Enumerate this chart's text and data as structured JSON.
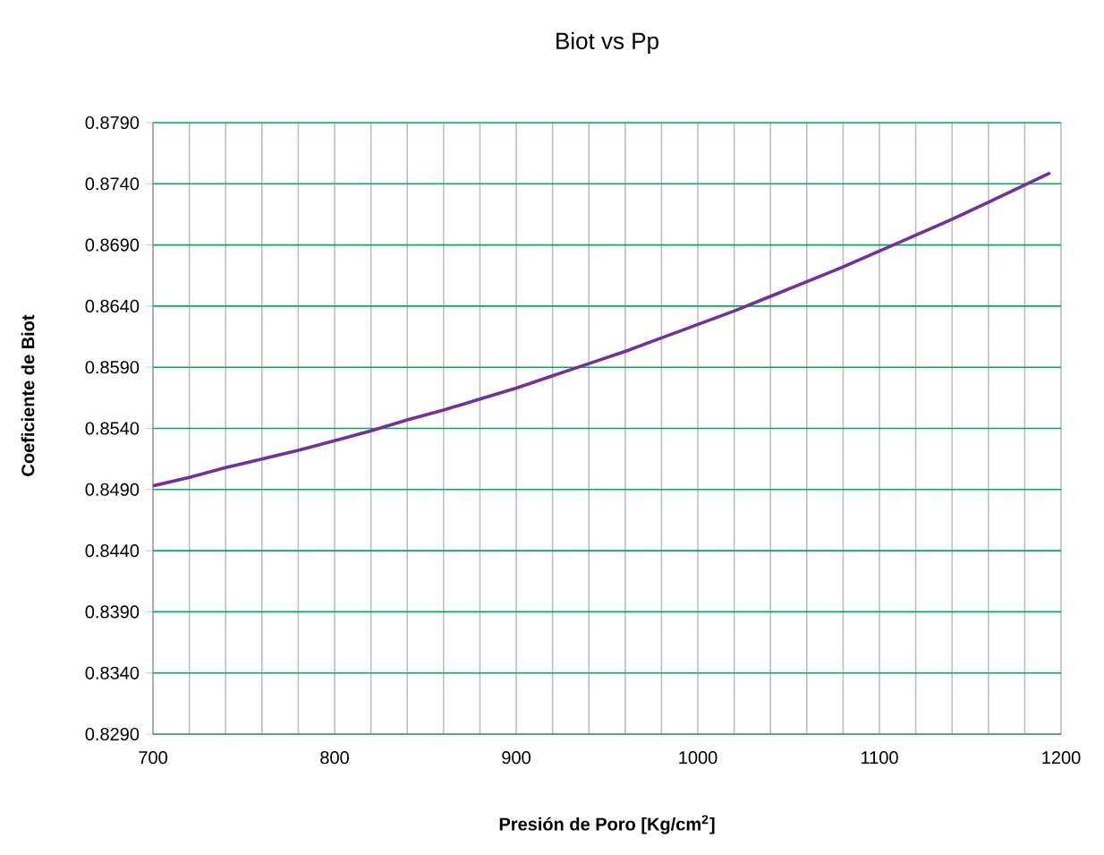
{
  "chart_data": {
    "type": "line",
    "title": "Biot vs Pp",
    "xlabel": "Presión de Poro [Kg/cm$^{2}$]",
    "ylabel": "Coeficiente de Biot",
    "x": [
      700,
      720,
      740,
      760,
      780,
      800,
      820,
      840,
      860,
      880,
      900,
      920,
      940,
      960,
      980,
      1000,
      1020,
      1040,
      1060,
      1080,
      1100,
      1120,
      1140,
      1160,
      1180,
      1194
    ],
    "series": [
      {
        "color": "#7030a0",
        "values": [
          0.8493,
          0.85,
          0.8508,
          0.8515,
          0.8522,
          0.853,
          0.8538,
          0.8547,
          0.8555,
          0.8564,
          0.8573,
          0.8583,
          0.8593,
          0.8603,
          0.8614,
          0.8625,
          0.8636,
          0.8648,
          0.866,
          0.8672,
          0.8685,
          0.8698,
          0.8711,
          0.8725,
          0.8739,
          0.8749
        ]
      }
    ],
    "xlim": [
      700,
      1200
    ],
    "ylim": [
      0.829,
      0.879
    ],
    "xticks": [
      700,
      {
        "value": 720,
        "label": null
      },
      {
        "value": 740,
        "label": null
      },
      {
        "value": 760,
        "label": null
      },
      {
        "value": 780,
        "label": null
      },
      800,
      {
        "value": 820,
        "label": null
      },
      {
        "value": 840,
        "label": null
      },
      {
        "value": 860,
        "label": null
      },
      {
        "value": 880,
        "label": null
      },
      900,
      {
        "value": 920,
        "label": null
      },
      {
        "value": 940,
        "label": null
      },
      {
        "value": 960,
        "label": null
      },
      {
        "value": 980,
        "label": null
      },
      1000,
      {
        "value": 1020,
        "label": null
      },
      {
        "value": 1040,
        "label": null
      },
      {
        "value": 1060,
        "label": null
      },
      {
        "value": 1080,
        "label": null
      },
      1100,
      {
        "value": 1120,
        "label": null
      },
      {
        "value": 1140,
        "label": null
      },
      {
        "value": 1160,
        "label": null
      },
      {
        "value": 1180,
        "label": null
      },
      1200
    ],
    "yticks": [
      {
        "value": 0.829,
        "label": "0.8290"
      },
      {
        "value": 0.834,
        "label": "0.8340"
      },
      {
        "value": 0.839,
        "label": "0.8390"
      },
      {
        "value": 0.844,
        "label": "0.8440"
      },
      {
        "value": 0.849,
        "label": "0.8490"
      },
      {
        "value": 0.854,
        "label": "0.8540"
      },
      {
        "value": 0.859,
        "label": "0.8590"
      },
      {
        "value": 0.864,
        "label": "0.8640"
      },
      {
        "value": 0.869,
        "label": "0.8690"
      },
      {
        "value": 0.874,
        "label": "0.8740"
      },
      {
        "value": 0.879,
        "label": "0.8790"
      }
    ],
    "grid": true,
    "legend": false,
    "marker": "none",
    "line_style": "solid"
  }
}
